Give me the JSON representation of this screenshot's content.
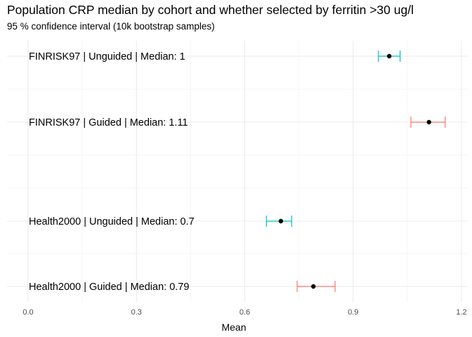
{
  "chart_data": {
    "type": "scatter",
    "title": "Population CRP median by cohort and whether selected by ferritin >30 ug/l",
    "subtitle": "95 % confidence interval (10k bootstrap samples)",
    "xlabel": "Mean",
    "ylabel": "",
    "xlim": [
      0.0,
      1.2
    ],
    "xticks": [
      "0.0",
      "0.3",
      "0.6",
      "0.9",
      "1.2"
    ],
    "grid": true,
    "legend": "none",
    "colors": {
      "Guided": "#F8766D",
      "Unguided": "#00BFC4",
      "point": "#000000"
    },
    "points": [
      {
        "label": "FINRISK97 | Unguided | Median: 1",
        "cohort": "FINRISK97",
        "group": "Unguided",
        "mean": 1.0,
        "ci_low": 0.97,
        "ci_high": 1.03
      },
      {
        "label": "FINRISK97 | Guided | Median: 1.11",
        "cohort": "FINRISK97",
        "group": "Guided",
        "mean": 1.11,
        "ci_low": 1.06,
        "ci_high": 1.155
      },
      {
        "label": "Health2000 | Unguided | Median: 0.7",
        "cohort": "Health2000",
        "group": "Unguided",
        "mean": 0.7,
        "ci_low": 0.66,
        "ci_high": 0.73
      },
      {
        "label": "Health2000 | Guided | Median: 0.79",
        "cohort": "Health2000",
        "group": "Guided",
        "mean": 0.79,
        "ci_low": 0.745,
        "ci_high": 0.85
      }
    ]
  }
}
